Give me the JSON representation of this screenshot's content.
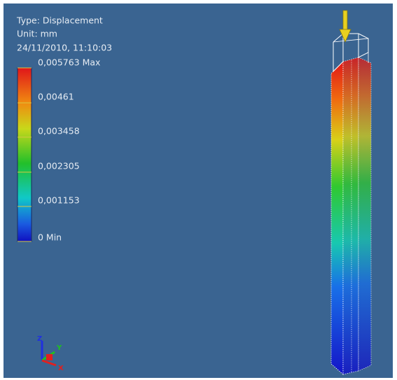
{
  "header": {
    "lines": [
      "Type: Displacement",
      "Unit: mm",
      "24/11/2010, 11:10:03"
    ]
  },
  "legend": {
    "labels": [
      "0,005763 Max",
      "0,00461",
      "0,003458",
      "0,002305",
      "0,001153",
      "0 Min"
    ]
  },
  "triad": {
    "labels": [
      "Z",
      "Y",
      "X"
    ]
  }
}
